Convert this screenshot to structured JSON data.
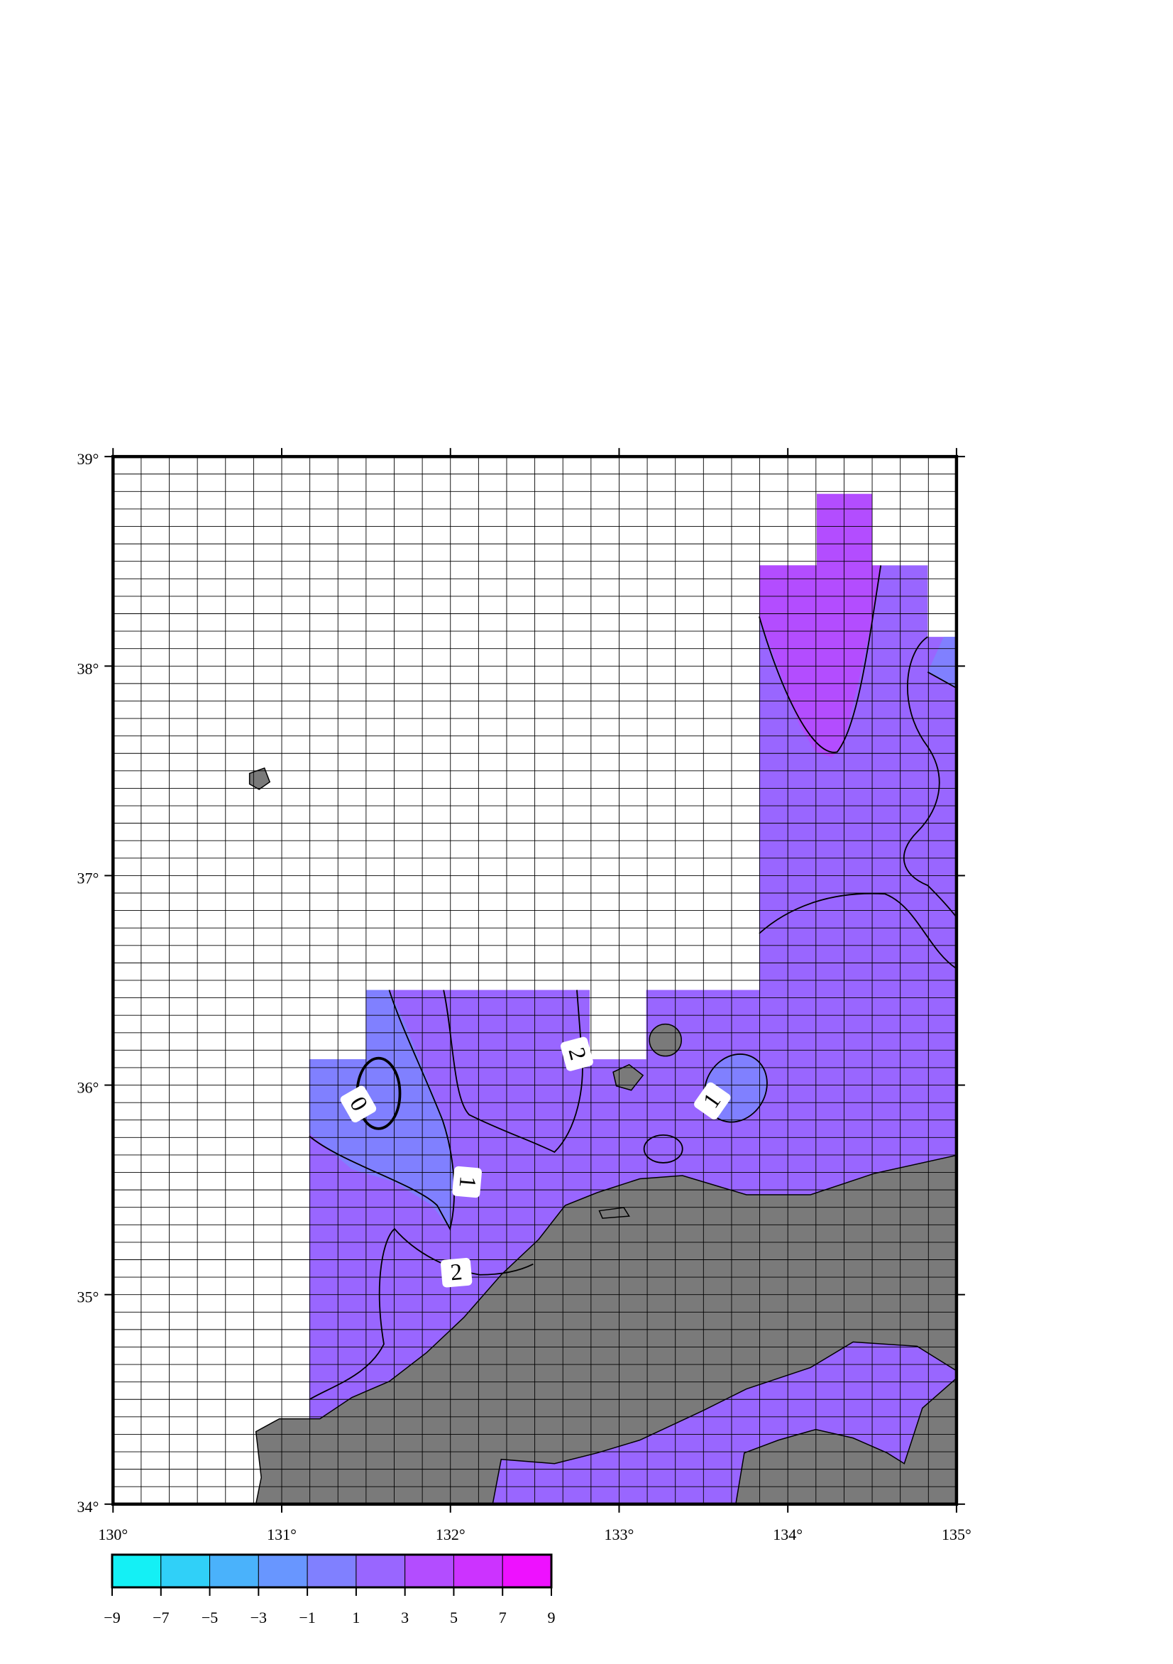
{
  "map": {
    "xlim": [
      130,
      135
    ],
    "ylim": [
      34,
      39
    ],
    "xticks": [
      {
        "value": 130,
        "label": "130°"
      },
      {
        "value": 131,
        "label": "131°"
      },
      {
        "value": 132,
        "label": "132°"
      },
      {
        "value": 133,
        "label": "133°"
      },
      {
        "value": 134,
        "label": "134°"
      },
      {
        "value": 135,
        "label": "135°"
      }
    ],
    "yticks": [
      {
        "value": 34,
        "label": "34°"
      },
      {
        "value": 35,
        "label": "35°"
      },
      {
        "value": 36,
        "label": "36°"
      },
      {
        "value": 37,
        "label": "37°"
      },
      {
        "value": 38,
        "label": "38°"
      },
      {
        "value": 39,
        "label": "39°"
      }
    ],
    "colorbar": {
      "lim": [
        -9,
        9
      ],
      "ticks": [
        {
          "value": -9,
          "label": "−9"
        },
        {
          "value": -7,
          "label": "−7"
        },
        {
          "value": -5,
          "label": "−5"
        },
        {
          "value": -3,
          "label": "−3"
        },
        {
          "value": -1,
          "label": "−1"
        },
        1,
        3,
        5,
        7,
        9
      ],
      "colors": [
        "#14f0f5",
        "#30d0f8",
        "#4ab2fb",
        "#6896ff",
        "#8080ff",
        "#9966ff",
        "#b34dff",
        "#cc33ff",
        "#ee11ff"
      ]
    },
    "contour_labels": [
      "0",
      "1",
      "2",
      "2",
      "1"
    ]
  }
}
